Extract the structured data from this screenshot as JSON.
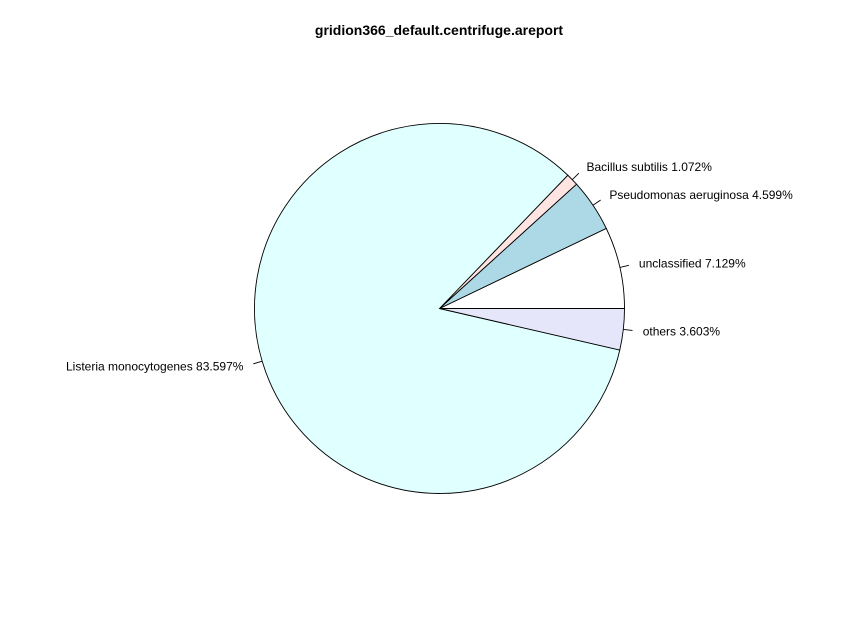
{
  "chart_data": {
    "type": "pie",
    "title": "gridion366_default.centrifuge.areport",
    "start_angle_deg": 0,
    "direction": "counterclockwise",
    "slices": [
      {
        "label": "unclassified 7.129%",
        "value": 7.129,
        "color": "#ffffff"
      },
      {
        "label": "Pseudomonas aeruginosa 4.599%",
        "value": 4.599,
        "color": "#add8e6"
      },
      {
        "label": "Bacillus subtilis 1.072%",
        "value": 1.072,
        "color": "#ffe4e1"
      },
      {
        "label": "Listeria monocytogenes 83.597%",
        "value": 83.597,
        "color": "#e0ffff"
      },
      {
        "label": "others 3.603%",
        "value": 3.603,
        "color": "#e6e6fa"
      }
    ]
  }
}
